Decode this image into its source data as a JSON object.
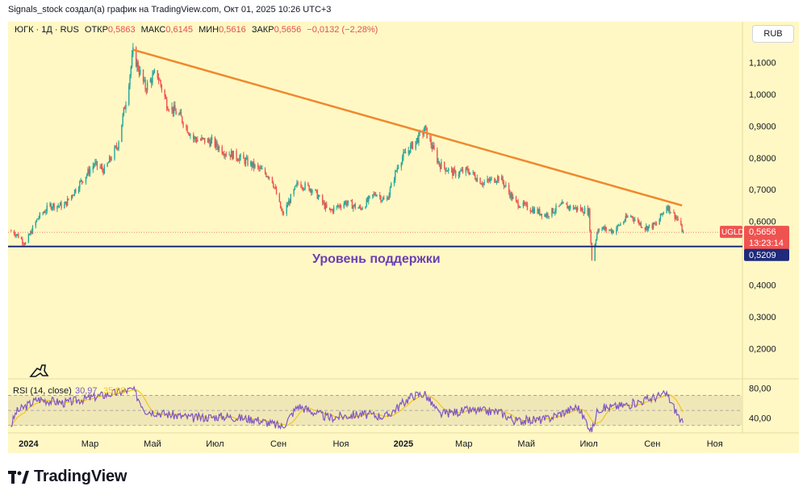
{
  "header": {
    "title": "Signals_stock создал(а) график на TradingView.com, Окт 01, 2025 10:26 UTC+3"
  },
  "legend": {
    "symbol": "ЮГК · 1Д · RUS",
    "open_label": "ОТКР",
    "open": "0,5863",
    "high_label": "МАКС",
    "high": "0,6145",
    "low_label": "МИН",
    "low": "0,5616",
    "close_label": "ЗАКР",
    "close": "0,5656",
    "change": "−0,0132 (−2,28%)"
  },
  "currency_button": "RUB",
  "price_axis": {
    "ticks": [
      "1,1000",
      "1,0000",
      "0,9000",
      "0,8000",
      "0,7000",
      "0,6000",
      "0,4000",
      "0,3000",
      "0,2000"
    ]
  },
  "time_axis": {
    "ticks": [
      "2024",
      "Мар",
      "Май",
      "Июл",
      "Сен",
      "Ноя",
      "2025",
      "Мар",
      "Май",
      "Июл",
      "Сен",
      "Ноя"
    ]
  },
  "annotations": {
    "support_label": "Уровень поддержки"
  },
  "price_labels": {
    "ticker": "UGLD",
    "last_price": "0,5656",
    "countdown": "13:23:14",
    "support_price": "0,5209"
  },
  "rsi": {
    "label": "RSI (14, close)",
    "value": "30,97",
    "value2": "35,98",
    "ticks": [
      "80,00",
      "40,00"
    ]
  },
  "colors": {
    "chart_bg": "#fff8c4",
    "up": "#26a69a",
    "down": "#ef5350",
    "trendline": "#f0882e",
    "support": "#1f2a7a",
    "rsi_line": "#7e57c2",
    "rsi_ma": "#f5c518"
  },
  "footer": {
    "brand": "TradingView"
  },
  "icons": {
    "logo": "tradingview-logo-icon",
    "dino": "dinosaur-icon"
  },
  "chart_data": {
    "type": "candlestick",
    "title": "ЮГК · 1Д · RUS",
    "ylabel": "RUB",
    "ylim": [
      0.15,
      1.19
    ],
    "x_range": [
      "2023-12-12",
      "2025-11-28"
    ],
    "anchors": [
      [
        "2023-12-15",
        0.57
      ],
      [
        "2023-12-20",
        0.56
      ],
      [
        "2023-12-29",
        0.53
      ],
      [
        "2024-01-04",
        0.57
      ],
      [
        "2024-01-10",
        0.61
      ],
      [
        "2024-01-22",
        0.65
      ],
      [
        "2024-02-05",
        0.65
      ],
      [
        "2024-02-20",
        0.72
      ],
      [
        "2024-03-05",
        0.78
      ],
      [
        "2024-03-15",
        0.76
      ],
      [
        "2024-03-28",
        0.84
      ],
      [
        "2024-04-05",
        0.98
      ],
      [
        "2024-04-12",
        1.13
      ],
      [
        "2024-04-24",
        1.02
      ],
      [
        "2024-05-05",
        1.07
      ],
      [
        "2024-05-15",
        0.97
      ],
      [
        "2024-05-28",
        0.93
      ],
      [
        "2024-06-10",
        0.86
      ],
      [
        "2024-06-28",
        0.85
      ],
      [
        "2024-07-10",
        0.82
      ],
      [
        "2024-07-25",
        0.8
      ],
      [
        "2024-08-10",
        0.77
      ],
      [
        "2024-08-25",
        0.74
      ],
      [
        "2024-09-05",
        0.62
      ],
      [
        "2024-09-20",
        0.72
      ],
      [
        "2024-10-05",
        0.7
      ],
      [
        "2024-10-20",
        0.63
      ],
      [
        "2024-11-05",
        0.66
      ],
      [
        "2024-11-20",
        0.64
      ],
      [
        "2024-12-05",
        0.69
      ],
      [
        "2024-12-15",
        0.66
      ],
      [
        "2024-12-28",
        0.79
      ],
      [
        "2025-01-10",
        0.84
      ],
      [
        "2025-01-22",
        0.89
      ],
      [
        "2025-02-05",
        0.78
      ],
      [
        "2025-02-20",
        0.75
      ],
      [
        "2025-03-05",
        0.76
      ],
      [
        "2025-03-20",
        0.72
      ],
      [
        "2025-04-05",
        0.74
      ],
      [
        "2025-04-20",
        0.66
      ],
      [
        "2025-05-05",
        0.64
      ],
      [
        "2025-05-20",
        0.62
      ],
      [
        "2025-06-05",
        0.65
      ],
      [
        "2025-06-20",
        0.64
      ],
      [
        "2025-07-01",
        0.63
      ],
      [
        "2025-07-04",
        0.48
      ],
      [
        "2025-07-10",
        0.58
      ],
      [
        "2025-07-25",
        0.57
      ],
      [
        "2025-08-10",
        0.62
      ],
      [
        "2025-08-25",
        0.58
      ],
      [
        "2025-09-05",
        0.59
      ],
      [
        "2025-09-15",
        0.65
      ],
      [
        "2025-09-25",
        0.61
      ],
      [
        "2025-10-01",
        0.5656
      ]
    ],
    "trendline": [
      [
        "2024-04-12",
        1.14
      ],
      [
        "2025-09-30",
        0.65
      ]
    ],
    "support_level": 0.5209,
    "last_price": 0.5656,
    "rsi_ylim": [
      20,
      90
    ],
    "rsi_levels": [
      70,
      50,
      30
    ],
    "rsi_anchors": [
      [
        "2023-12-15",
        30
      ],
      [
        "2023-12-20",
        48
      ],
      [
        "2024-01-10",
        65
      ],
      [
        "2024-02-05",
        60
      ],
      [
        "2024-03-05",
        68
      ],
      [
        "2024-04-12",
        78
      ],
      [
        "2024-04-24",
        50
      ],
      [
        "2024-05-15",
        45
      ],
      [
        "2024-06-10",
        40
      ],
      [
        "2024-07-10",
        42
      ],
      [
        "2024-08-10",
        38
      ],
      [
        "2024-09-05",
        28
      ],
      [
        "2024-09-20",
        56
      ],
      [
        "2024-10-20",
        40
      ],
      [
        "2024-11-20",
        45
      ],
      [
        "2024-12-15",
        42
      ],
      [
        "2025-01-10",
        70
      ],
      [
        "2025-01-22",
        72
      ],
      [
        "2025-02-05",
        45
      ],
      [
        "2025-03-05",
        50
      ],
      [
        "2025-04-05",
        48
      ],
      [
        "2025-04-20",
        36
      ],
      [
        "2025-05-20",
        38
      ],
      [
        "2025-06-20",
        55
      ],
      [
        "2025-07-04",
        22
      ],
      [
        "2025-07-10",
        52
      ],
      [
        "2025-08-10",
        58
      ],
      [
        "2025-09-15",
        72
      ],
      [
        "2025-10-01",
        30.97
      ]
    ]
  }
}
